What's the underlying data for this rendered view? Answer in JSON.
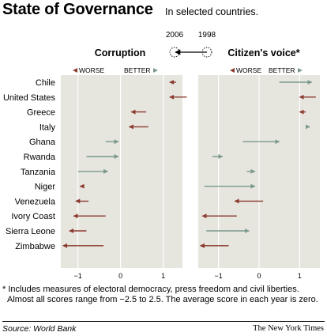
{
  "header": {
    "title": "State of Governance",
    "subtitle": "In selected countries."
  },
  "key": {
    "from_label": "2006",
    "to_label": "1998"
  },
  "direction": {
    "worse": "WORSE",
    "better": "BETTER"
  },
  "footnote": {
    "line1": "* Includes measures of electoral democracy, press freedom and civil liberties.",
    "line2": "Almost all scores range from −2.5 to 2.5. The average score in each year is zero."
  },
  "footer": {
    "source": "Source: World Bank",
    "credit": "The New York Times"
  },
  "colors": {
    "worse": "#8b3a2e",
    "better": "#7a9a8c",
    "panel": "#e6e5de",
    "grid": "#ffffff"
  },
  "chart_data": [
    {
      "type": "arrow",
      "title": "Corruption",
      "xlim": [
        -1.4,
        1.45
      ],
      "xticks": [
        -1,
        0,
        1
      ],
      "categories": [
        "Chile",
        "United States",
        "Greece",
        "Italy",
        "Ghana",
        "Rwanda",
        "Tanzania",
        "Niger",
        "Venezuela",
        "Ivory Coast",
        "Sierra Leone",
        "Zimbabwe"
      ],
      "series": [
        {
          "name": "1998",
          "values": [
            1.3,
            1.55,
            0.6,
            0.65,
            -0.35,
            -0.8,
            -1.0,
            -0.85,
            -0.75,
            -0.35,
            -0.8,
            -0.4
          ]
        },
        {
          "name": "2006",
          "values": [
            1.15,
            1.15,
            0.25,
            0.2,
            -0.05,
            -0.05,
            -0.3,
            -0.95,
            -1.05,
            -1.1,
            -1.2,
            -1.35
          ]
        }
      ]
    },
    {
      "type": "arrow",
      "title": "Citizen's voice*",
      "xlim": [
        -1.5,
        1.5
      ],
      "xticks": [
        -1,
        0,
        1
      ],
      "categories": [
        "Chile",
        "United States",
        "Greece",
        "Italy",
        "Ghana",
        "Rwanda",
        "Tanzania",
        "Niger",
        "Venezuela",
        "Ivory Coast",
        "Sierra Leone",
        "Zimbabwe"
      ],
      "series": [
        {
          "name": "1998",
          "values": [
            0.5,
            1.4,
            1.15,
            1.15,
            -0.4,
            -1.15,
            -0.3,
            -1.35,
            0.1,
            -0.55,
            -1.3,
            -0.75
          ]
        },
        {
          "name": "2006",
          "values": [
            1.3,
            1.0,
            1.0,
            1.25,
            0.5,
            -0.9,
            -0.1,
            -0.1,
            -0.6,
            -1.4,
            -0.25,
            -1.45
          ]
        }
      ]
    }
  ]
}
